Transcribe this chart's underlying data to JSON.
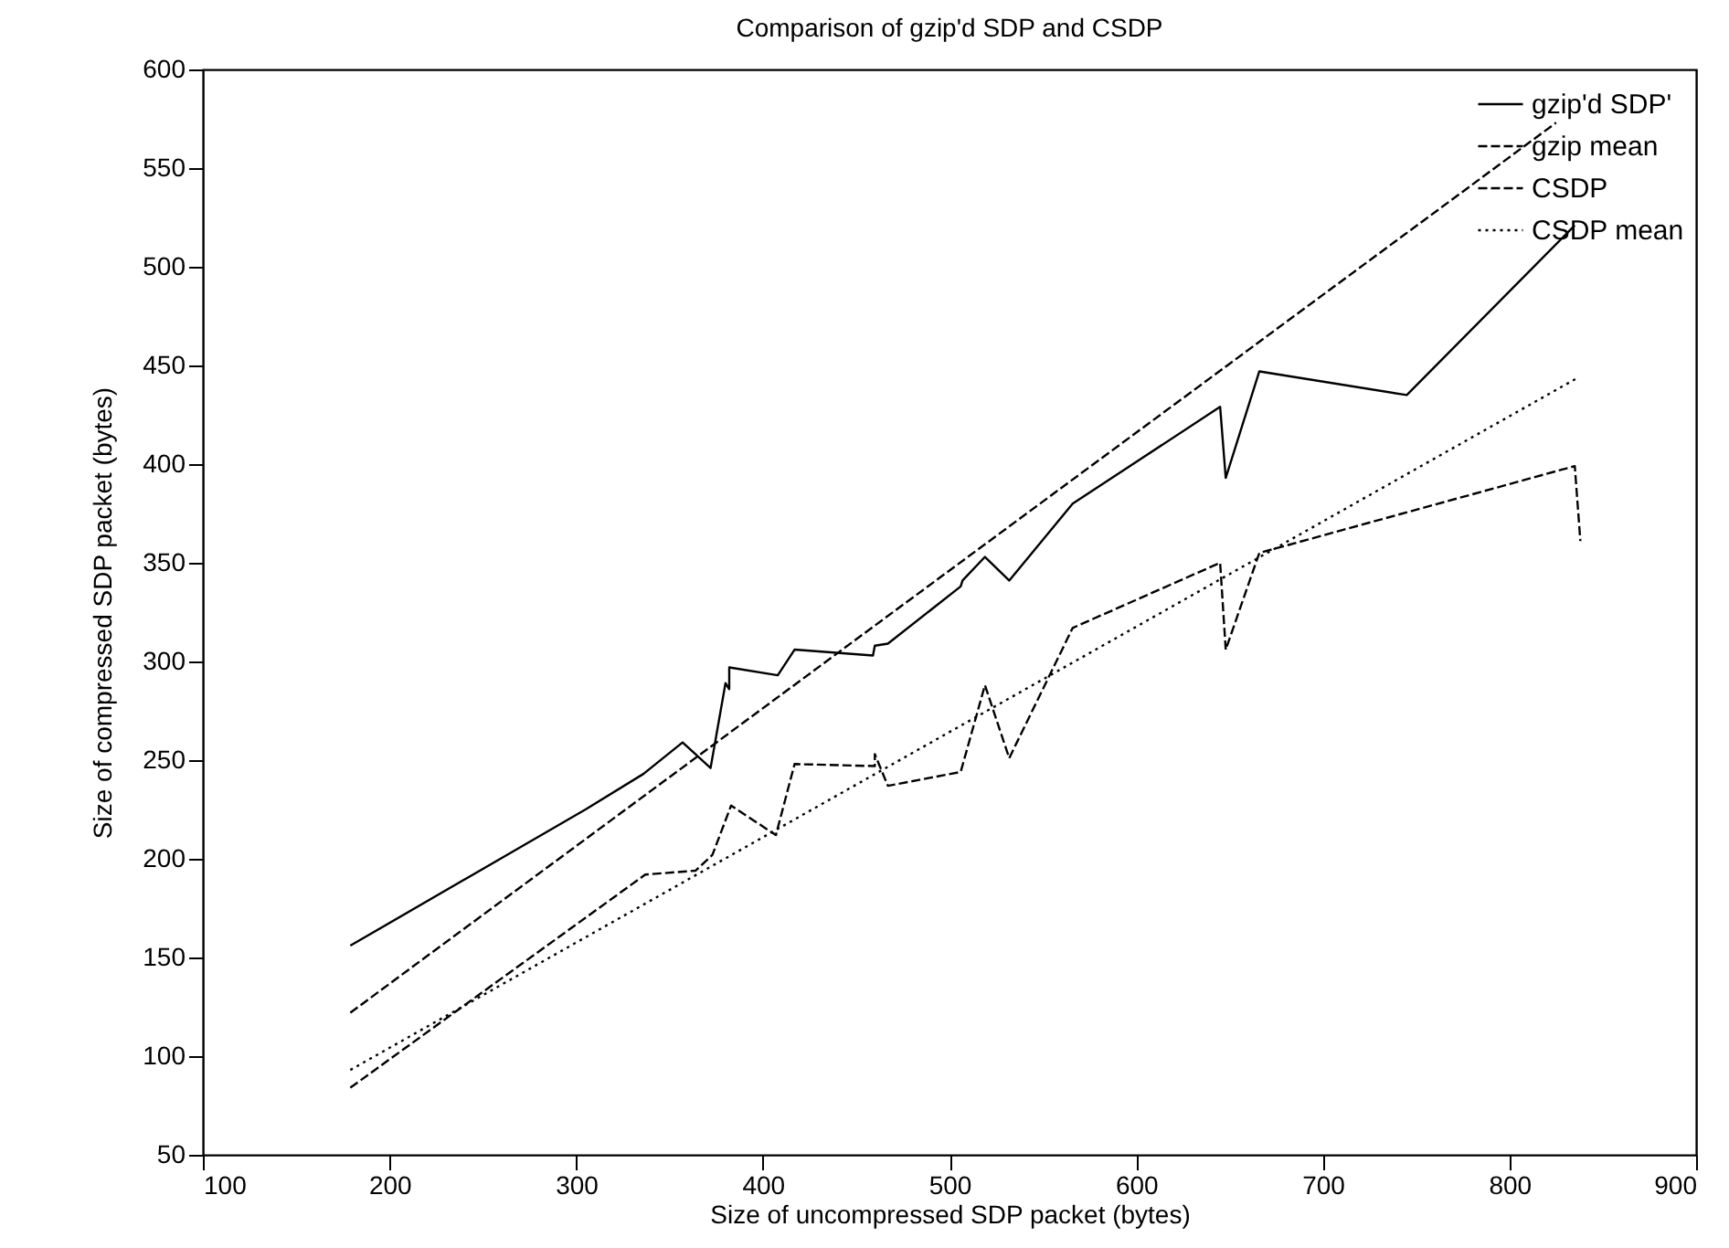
{
  "chart_data": {
    "type": "line",
    "title": "Comparison of gzip'd SDP and CSDP",
    "xlabel": "Size of uncompressed SDP packet (bytes)",
    "ylabel": "Size of compressed SDP packet (bytes)",
    "xlim": [
      100,
      900
    ],
    "xticks": [
      100,
      200,
      300,
      400,
      500,
      600,
      700,
      800,
      900
    ],
    "ylim": [
      50,
      600
    ],
    "yticks": [
      50,
      100,
      150,
      200,
      250,
      300,
      350,
      400,
      450,
      500,
      550,
      600
    ],
    "grid": false,
    "legend": "top right",
    "marker": "none",
    "series": [
      {
        "name": "gzip'd SDP'",
        "color": "#000000",
        "line_style": "solid",
        "x": [
          179,
          305,
          336,
          357,
          372,
          380,
          382,
          382,
          408,
          417,
          459,
          460,
          467,
          506,
          507,
          519,
          532,
          566,
          645,
          648,
          666,
          745,
          835
        ],
        "values": [
          156,
          225,
          243,
          259,
          246,
          289,
          286,
          297,
          293,
          306,
          303,
          308,
          309,
          338,
          341,
          353,
          341,
          380,
          429,
          393,
          447,
          435,
          521
        ]
      },
      {
        "name": "gzip mean",
        "color": "#000000",
        "line_style": "dashed",
        "x": [
          179,
          825
        ],
        "values": [
          122,
          573
        ]
      },
      {
        "name": "CSDP",
        "color": "#000000",
        "line_style": "dashed",
        "x": [
          179,
          337,
          364,
          373,
          383,
          407,
          417,
          460,
          460,
          467,
          506,
          519,
          532,
          566,
          645,
          648,
          666,
          835,
          838
        ],
        "values": [
          84,
          192,
          194,
          202,
          227,
          212,
          248,
          247,
          253,
          237,
          244,
          288,
          251,
          317,
          350,
          306,
          355,
          399,
          361
        ]
      },
      {
        "name": "CSDP mean",
        "color": "#000000",
        "line_style": "dotted",
        "x": [
          179,
          837
        ],
        "values": [
          93,
          444
        ]
      }
    ]
  }
}
